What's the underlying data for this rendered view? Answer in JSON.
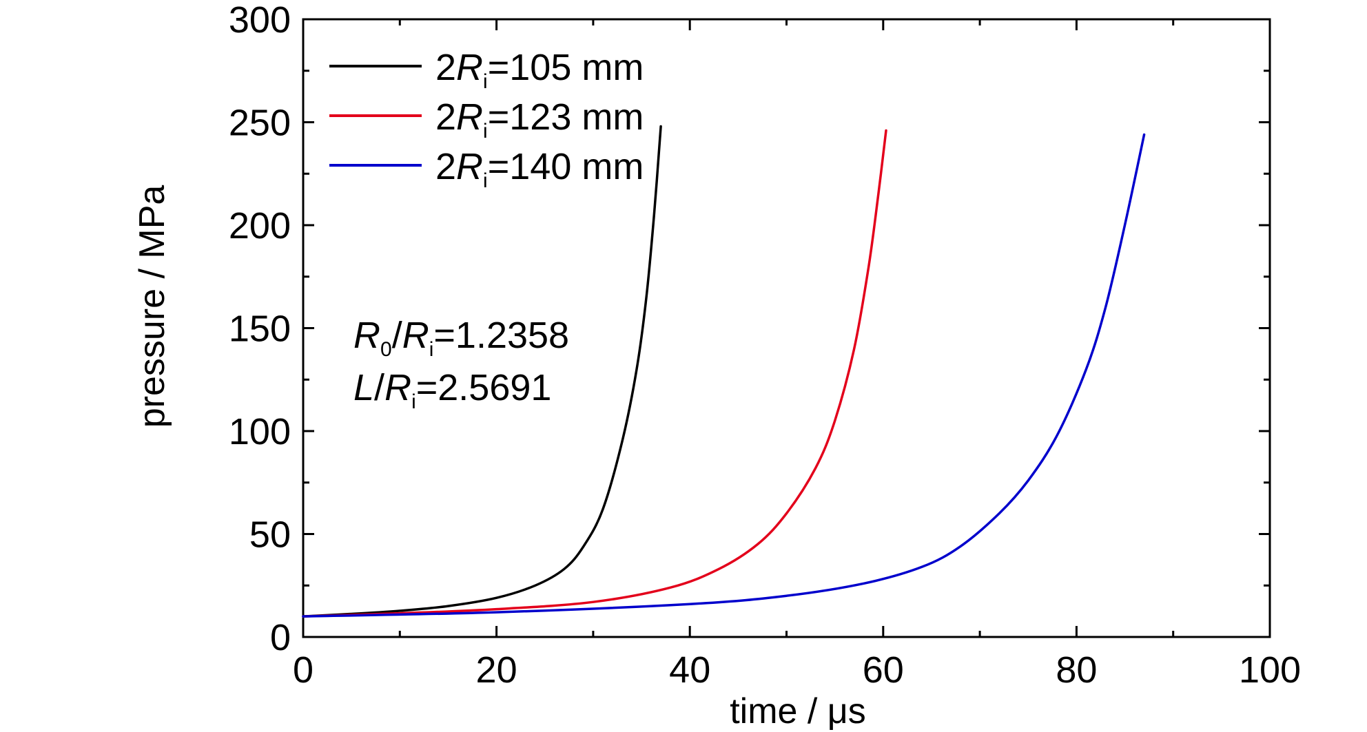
{
  "chart_data": {
    "type": "line",
    "xlabel": "time / μs",
    "ylabel": "pressure / MPa",
    "xlim": [
      0,
      100
    ],
    "ylim": [
      0,
      300
    ],
    "x_ticks": [
      "0",
      "20",
      "40",
      "60",
      "80",
      "100"
    ],
    "y_ticks": [
      "0",
      "50",
      "100",
      "150",
      "200",
      "250",
      "300"
    ],
    "grid": false,
    "legend_position": "top-left",
    "annotations": [
      {
        "prefix": "",
        "italic1": "R",
        "sub1": "0",
        "sep": "/",
        "italic2": "R",
        "sub2": "i",
        "suffix": "=1.2358"
      },
      {
        "prefix": "",
        "italic1": "L",
        "sub1": "",
        "sep": "/",
        "italic2": "R",
        "sub2": "i",
        "suffix": "=2.5691"
      }
    ],
    "series": [
      {
        "name": "2Ri=105 mm",
        "legend_prefix": "2",
        "legend_italic": "R",
        "legend_sub": "i",
        "legend_suffix": "=105 mm",
        "color": "#000000",
        "points": [
          [
            0,
            10
          ],
          [
            5,
            11.2
          ],
          [
            10,
            12.7
          ],
          [
            15,
            15
          ],
          [
            20,
            19
          ],
          [
            24,
            25
          ],
          [
            27,
            33
          ],
          [
            29,
            44
          ],
          [
            31,
            62
          ],
          [
            33,
            95
          ],
          [
            34.5,
            130
          ],
          [
            35.5,
            165
          ],
          [
            36.3,
            205
          ],
          [
            37,
            248
          ]
        ]
      },
      {
        "name": "2Ri=123 mm",
        "legend_prefix": "2",
        "legend_italic": "R",
        "legend_sub": "i",
        "legend_suffix": "=123 mm",
        "color": "#e3001b",
        "points": [
          [
            0,
            10
          ],
          [
            10,
            11.5
          ],
          [
            20,
            13.5
          ],
          [
            30,
            17
          ],
          [
            38,
            24
          ],
          [
            43,
            33
          ],
          [
            47,
            45
          ],
          [
            50,
            60
          ],
          [
            53,
            82
          ],
          [
            55,
            105
          ],
          [
            57,
            140
          ],
          [
            58.5,
            180
          ],
          [
            59.5,
            215
          ],
          [
            60.3,
            246
          ]
        ]
      },
      {
        "name": "2Ri=140 mm",
        "legend_prefix": "2",
        "legend_italic": "R",
        "legend_sub": "i",
        "legend_suffix": "=140 mm",
        "color": "#0000cc",
        "points": [
          [
            0,
            10
          ],
          [
            20,
            12
          ],
          [
            40,
            16
          ],
          [
            50,
            20
          ],
          [
            58,
            26
          ],
          [
            64,
            34
          ],
          [
            68,
            44
          ],
          [
            72,
            60
          ],
          [
            75,
            76
          ],
          [
            78,
            98
          ],
          [
            81,
            130
          ],
          [
            83,
            160
          ],
          [
            85,
            200
          ],
          [
            87,
            244
          ]
        ]
      }
    ]
  }
}
